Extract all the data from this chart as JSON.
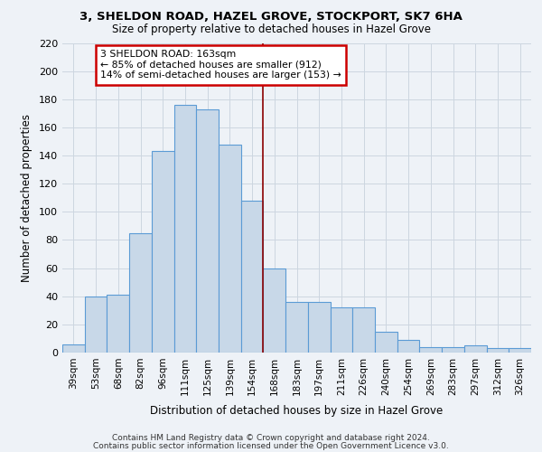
{
  "title": "3, SHELDON ROAD, HAZEL GROVE, STOCKPORT, SK7 6HA",
  "subtitle": "Size of property relative to detached houses in Hazel Grove",
  "xlabel": "Distribution of detached houses by size in Hazel Grove",
  "ylabel": "Number of detached properties",
  "categories": [
    "39sqm",
    "53sqm",
    "68sqm",
    "82sqm",
    "96sqm",
    "111sqm",
    "125sqm",
    "139sqm",
    "154sqm",
    "168sqm",
    "183sqm",
    "197sqm",
    "211sqm",
    "226sqm",
    "240sqm",
    "254sqm",
    "269sqm",
    "283sqm",
    "297sqm",
    "312sqm",
    "326sqm"
  ],
  "values": [
    6,
    40,
    41,
    85,
    143,
    176,
    173,
    148,
    108,
    60,
    36,
    36,
    32,
    32,
    15,
    9,
    4,
    4,
    5,
    3,
    3
  ],
  "bar_facecolor": "#c8d8e8",
  "bar_edgecolor": "#5b9bd5",
  "grid_color": "#ccd6e0",
  "background_color": "#eef2f7",
  "vline_color": "#8b0000",
  "annotation_text": "3 SHELDON ROAD: 163sqm\n← 85% of detached houses are smaller (912)\n14% of semi-detached houses are larger (153) →",
  "annotation_box_edgecolor": "#cc0000",
  "annotation_box_facecolor": "#ffffff",
  "ylim": [
    0,
    220
  ],
  "yticks": [
    0,
    20,
    40,
    60,
    80,
    100,
    120,
    140,
    160,
    180,
    200,
    220
  ],
  "footer_line1": "Contains HM Land Registry data © Crown copyright and database right 2024.",
  "footer_line2": "Contains public sector information licensed under the Open Government Licence v3.0."
}
